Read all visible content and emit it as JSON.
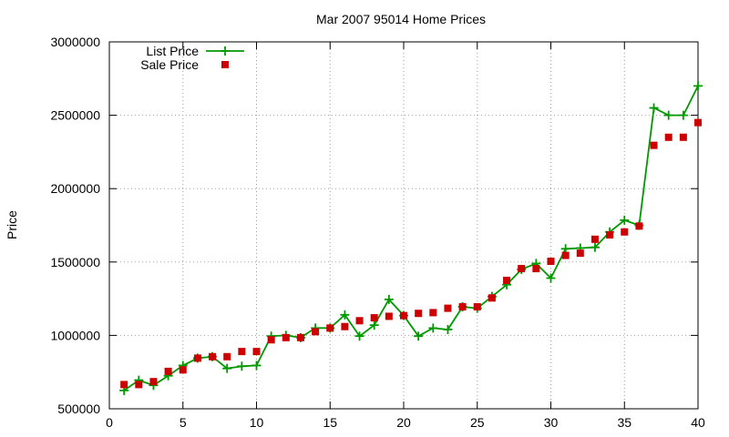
{
  "chart_data": {
    "type": "line",
    "title": "Mar 2007 95014 Home Prices",
    "xlabel": "",
    "ylabel": "Price",
    "xlim": [
      0,
      40
    ],
    "ylim": [
      500000,
      3000000
    ],
    "x_ticks": [
      0,
      5,
      10,
      15,
      20,
      25,
      30,
      35,
      40
    ],
    "y_ticks": [
      500000,
      1000000,
      1500000,
      2000000,
      2500000,
      3000000
    ],
    "grid": true,
    "legend_position": "top-left",
    "x": [
      1,
      2,
      3,
      4,
      5,
      6,
      7,
      8,
      9,
      10,
      11,
      12,
      13,
      14,
      15,
      16,
      17,
      18,
      19,
      20,
      21,
      22,
      23,
      24,
      25,
      26,
      27,
      28,
      29,
      30,
      31,
      32,
      33,
      34,
      35,
      36,
      37,
      38,
      39,
      40
    ],
    "series": [
      {
        "name": "List Price",
        "style": "linespoints",
        "color": "#009900",
        "values": [
          625000,
          695000,
          660000,
          725000,
          795000,
          845000,
          855000,
          775000,
          790000,
          795000,
          995000,
          1000000,
          985000,
          1050000,
          1050000,
          1140000,
          995000,
          1070000,
          1245000,
          1135000,
          995000,
          1050000,
          1040000,
          1195000,
          1185000,
          1265000,
          1345000,
          1450000,
          1490000,
          1390000,
          1590000,
          1595000,
          1600000,
          1705000,
          1785000,
          1750000,
          2550000,
          2500000,
          2500000,
          2700000
        ]
      },
      {
        "name": "Sale Price",
        "style": "points",
        "color": "#cc0000",
        "values": [
          665000,
          665000,
          685000,
          755000,
          765000,
          845000,
          855000,
          855000,
          890000,
          890000,
          970000,
          985000,
          985000,
          1025000,
          1050000,
          1060000,
          1100000,
          1120000,
          1130000,
          1135000,
          1150000,
          1155000,
          1185000,
          1195000,
          1195000,
          1255000,
          1375000,
          1455000,
          1455000,
          1505000,
          1545000,
          1560000,
          1655000,
          1685000,
          1705000,
          1745000,
          2295000,
          2350000,
          2350000,
          2450000
        ]
      }
    ]
  }
}
